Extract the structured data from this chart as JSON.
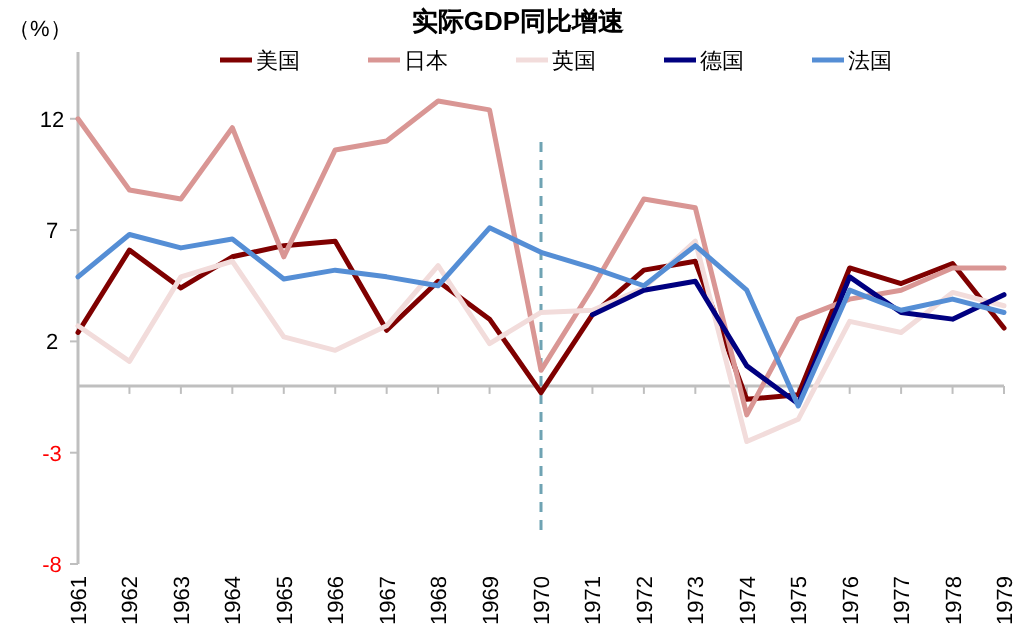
{
  "chart_data": {
    "type": "line",
    "title": "实际GDP同比增速",
    "ylabel": "（%）",
    "categories": [
      "1961",
      "1962",
      "1963",
      "1964",
      "1965",
      "1966",
      "1967",
      "1968",
      "1969",
      "1970",
      "1971",
      "1972",
      "1973",
      "1974",
      "1975",
      "1976",
      "1977",
      "1978",
      "1979"
    ],
    "series": [
      {
        "name": "美国",
        "color": "#7f0000",
        "values": [
          2.4,
          6.1,
          4.4,
          5.8,
          6.3,
          6.5,
          2.5,
          4.7,
          3.0,
          -0.3,
          3.2,
          5.2,
          5.6,
          -0.6,
          -0.4,
          5.3,
          4.6,
          5.5,
          2.6
        ]
      },
      {
        "name": "日本",
        "color": "#d99694",
        "values": [
          12.0,
          8.8,
          8.4,
          11.6,
          5.8,
          10.6,
          11.0,
          12.8,
          12.4,
          0.7,
          4.4,
          8.4,
          8.0,
          -1.3,
          3.0,
          3.9,
          4.3,
          5.3,
          5.3
        ]
      },
      {
        "name": "英国",
        "color": "#f2dcdb",
        "values": [
          2.7,
          1.1,
          4.9,
          5.6,
          2.2,
          1.6,
          2.7,
          5.4,
          1.9,
          3.3,
          3.4,
          4.4,
          6.5,
          -2.5,
          -1.5,
          2.9,
          2.4,
          4.2,
          3.6
        ]
      },
      {
        "name": "德国",
        "color": "#000080",
        "values": [
          null,
          null,
          null,
          null,
          null,
          null,
          null,
          null,
          null,
          null,
          3.2,
          4.3,
          4.7,
          0.9,
          -0.8,
          4.9,
          3.3,
          3.0,
          4.1
        ]
      },
      {
        "name": "法国",
        "color": "#558ed5",
        "values": [
          4.9,
          6.8,
          6.2,
          6.6,
          4.8,
          5.2,
          4.9,
          4.5,
          7.1,
          6.0,
          5.3,
          4.5,
          6.3,
          4.3,
          -0.9,
          4.3,
          3.4,
          3.9,
          3.3
        ]
      }
    ],
    "ylim": [
      -8,
      15
    ],
    "yticks": [
      -8,
      -3,
      2,
      7,
      12
    ],
    "legend": "top",
    "ref_lines": [
      {
        "axis": "x",
        "value": "1970",
        "color": "#6fa3b3",
        "line_style": "dashed"
      }
    ]
  }
}
